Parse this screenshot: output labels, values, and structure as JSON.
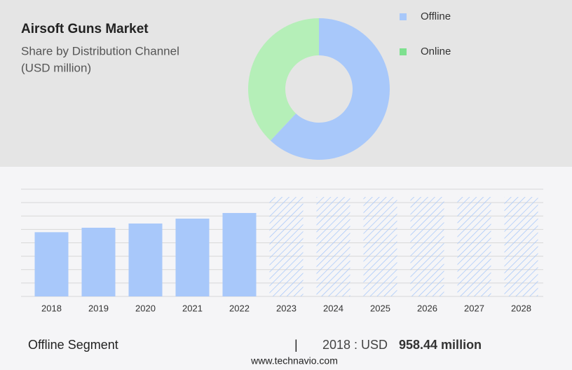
{
  "chart_data": [
    {
      "type": "pie",
      "title": "Airsoft Guns Market",
      "subtitle": [
        "Share by Distribution Channel",
        "(USD million)"
      ],
      "categories": [
        "Offline",
        "Online"
      ],
      "values": [
        62,
        38
      ],
      "colors": [
        "#a8c8fa",
        "#b5efb8"
      ],
      "legend_colors": [
        "#a8c8fa",
        "#7ee08f"
      ],
      "donut": true
    },
    {
      "type": "bar",
      "categories": [
        "2018",
        "2019",
        "2020",
        "2021",
        "2022",
        "2023",
        "2024",
        "2025",
        "2026",
        "2027",
        "2028"
      ],
      "values": [
        958.44,
        1025,
        1088,
        1161,
        1245,
        null,
        null,
        null,
        null,
        null,
        null
      ],
      "color": "#a8c8fa",
      "ylim": [
        0,
        1600
      ],
      "yticks": [
        0,
        200,
        400,
        600,
        800,
        1000,
        1200,
        1400,
        1600
      ],
      "grid": true
    }
  ],
  "footer": {
    "segment": "Offline Segment",
    "separator": "|",
    "year_text": "2018 : USD",
    "value_text": "958.44 million",
    "website": "www.technavio.com"
  }
}
